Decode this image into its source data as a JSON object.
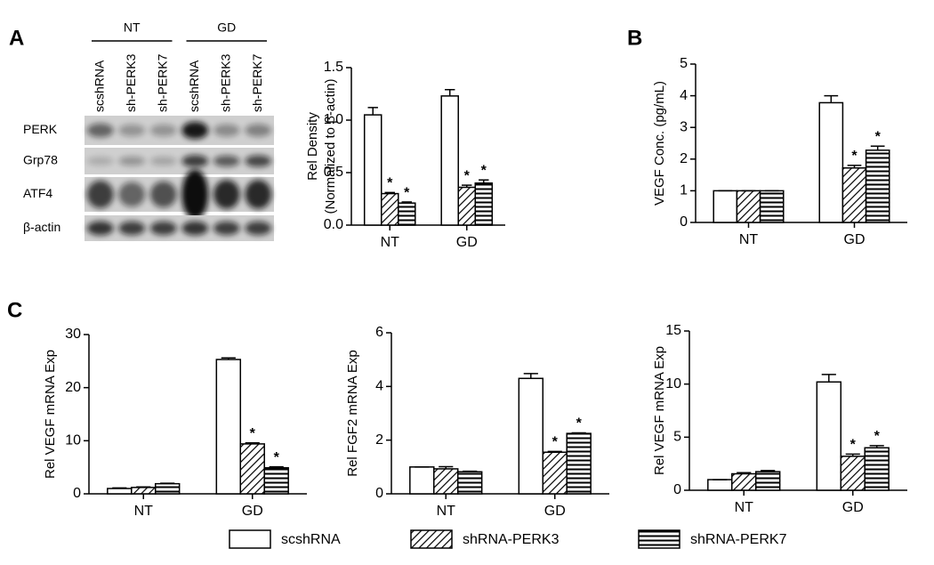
{
  "panel_labels": [
    "A",
    "B",
    "C"
  ],
  "blot": {
    "groups": [
      "NT",
      "GD"
    ],
    "lanes": [
      "scshRNA",
      "sh-PERK3",
      "sh-PERK7",
      "scshRNA",
      "sh-PERK3",
      "sh-PERK7"
    ],
    "rows": [
      "PERK",
      "Grp78",
      "ATF4",
      "β-actin"
    ]
  },
  "legend": {
    "entries": [
      {
        "name": "scshRNA",
        "pattern": "white"
      },
      {
        "name": "shRNA-PERK3",
        "pattern": "diagonal"
      },
      {
        "name": "shRNA-PERK7",
        "pattern": "horizontal"
      }
    ]
  },
  "chart_data": [
    {
      "type": "bar",
      "ylabel": [
        "Rel Density",
        "(Normalized to β-actin)"
      ],
      "categories": [
        "NT",
        "GD"
      ],
      "ylim": [
        0,
        1.5
      ],
      "yticks": [
        {
          "value": 0,
          "label": "0.0"
        },
        0.5,
        {
          "value": 1,
          "label": "1.0"
        },
        1.5
      ],
      "series": [
        {
          "pattern": "white",
          "values": [
            1.05,
            1.23
          ],
          "errors": [
            0.07,
            0.06
          ]
        },
        {
          "pattern": "diagonal",
          "values": [
            0.3,
            0.36
          ],
          "errors": [
            0.01,
            0.02
          ],
          "significance": [
            "*",
            "*"
          ]
        },
        {
          "pattern": "horizontal",
          "values": [
            0.21,
            0.4
          ],
          "errors": [
            0.01,
            0.03
          ],
          "significance": [
            "*",
            "*"
          ]
        }
      ]
    },
    {
      "type": "bar",
      "ylabel": "VEGF Conc. (pg/mL)",
      "categories": [
        "NT",
        "GD"
      ],
      "ylim": [
        0,
        5
      ],
      "yticks": [
        0,
        1,
        2,
        3,
        4,
        5
      ],
      "series": [
        {
          "pattern": "white",
          "values": [
            1.0,
            3.78
          ],
          "errors": [
            0,
            0.22
          ]
        },
        {
          "pattern": "diagonal",
          "values": [
            1.0,
            1.72
          ],
          "errors": [
            0,
            0.08
          ],
          "significance": [
            null,
            "*"
          ]
        },
        {
          "pattern": "horizontal",
          "values": [
            1.0,
            2.28
          ],
          "errors": [
            0,
            0.13
          ],
          "significance": [
            null,
            "*"
          ]
        }
      ]
    },
    {
      "type": "bar",
      "ylabel": "Rel VEGF mRNA Exp",
      "categories": [
        "NT",
        "GD"
      ],
      "ylim": [
        0,
        30
      ],
      "yticks": [
        0,
        10,
        20,
        30
      ],
      "series": [
        {
          "pattern": "white",
          "values": [
            1.0,
            25.3
          ],
          "errors": [
            0.1,
            0.3
          ]
        },
        {
          "pattern": "diagonal",
          "values": [
            1.2,
            9.4
          ],
          "errors": [
            0.1,
            0.2
          ],
          "significance": [
            null,
            "*"
          ]
        },
        {
          "pattern": "horizontal",
          "values": [
            1.9,
            4.9
          ],
          "errors": [
            0.1,
            0.2
          ],
          "significance": [
            null,
            "*"
          ]
        }
      ]
    },
    {
      "type": "bar",
      "ylabel": "Rel FGF2 mRNA Exp",
      "categories": [
        "NT",
        "GD"
      ],
      "ylim": [
        0,
        6
      ],
      "yticks": [
        0,
        2,
        4,
        6
      ],
      "series": [
        {
          "pattern": "white",
          "values": [
            1.0,
            4.3
          ],
          "errors": [
            0,
            0.18
          ]
        },
        {
          "pattern": "diagonal",
          "values": [
            0.93,
            1.55
          ],
          "errors": [
            0.08,
            0.03
          ],
          "significance": [
            null,
            "*"
          ]
        },
        {
          "pattern": "horizontal",
          "values": [
            0.82,
            2.25
          ],
          "errors": [
            0.02,
            0.02
          ],
          "significance": [
            null,
            "*"
          ]
        }
      ]
    },
    {
      "type": "bar",
      "ylabel": "Rel VEGF mRNA Exp",
      "categories": [
        "NT",
        "GD"
      ],
      "ylim": [
        0,
        15
      ],
      "yticks": [
        0,
        5,
        10,
        15
      ],
      "series": [
        {
          "pattern": "white",
          "values": [
            1.0,
            10.2
          ],
          "errors": [
            0,
            0.7
          ]
        },
        {
          "pattern": "diagonal",
          "values": [
            1.55,
            3.2
          ],
          "errors": [
            0.1,
            0.2
          ],
          "significance": [
            null,
            "*"
          ]
        },
        {
          "pattern": "horizontal",
          "values": [
            1.75,
            4.0
          ],
          "errors": [
            0.1,
            0.2
          ],
          "significance": [
            null,
            "*"
          ]
        }
      ]
    }
  ]
}
